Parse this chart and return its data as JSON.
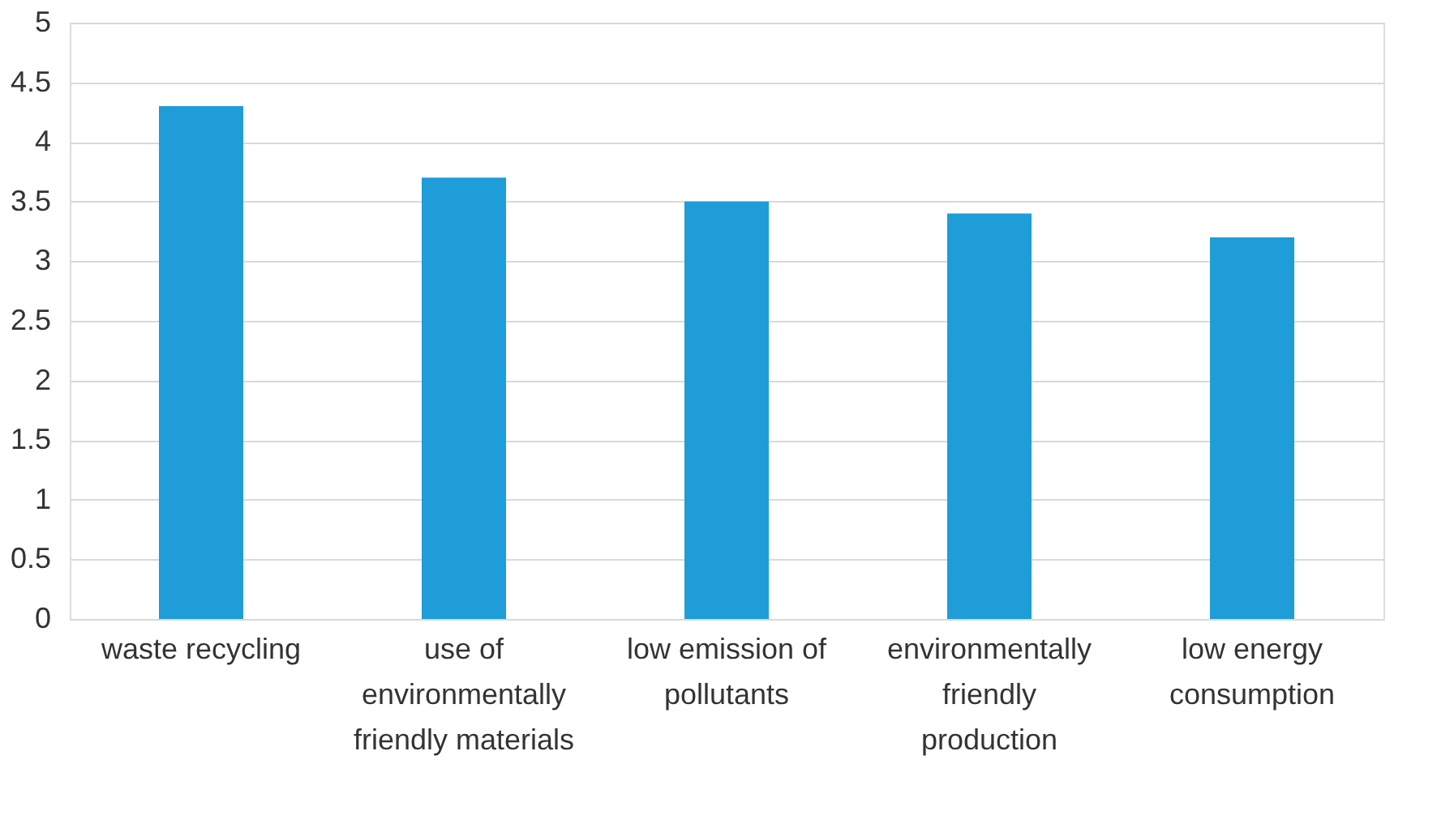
{
  "chart_data": {
    "type": "bar",
    "categories": [
      "waste recycling",
      "use of environmentally friendly materials",
      "low emission of pollutants",
      "environmentally friendly production",
      "low energy consumption"
    ],
    "values": [
      4.3,
      3.7,
      3.5,
      3.4,
      3.2
    ],
    "color": "#1e9dd8",
    "ylim": [
      0,
      5
    ],
    "yticks": [
      0,
      0.5,
      1,
      1.5,
      2,
      2.5,
      3,
      3.5,
      4,
      4.5,
      5
    ],
    "grid": "y"
  }
}
